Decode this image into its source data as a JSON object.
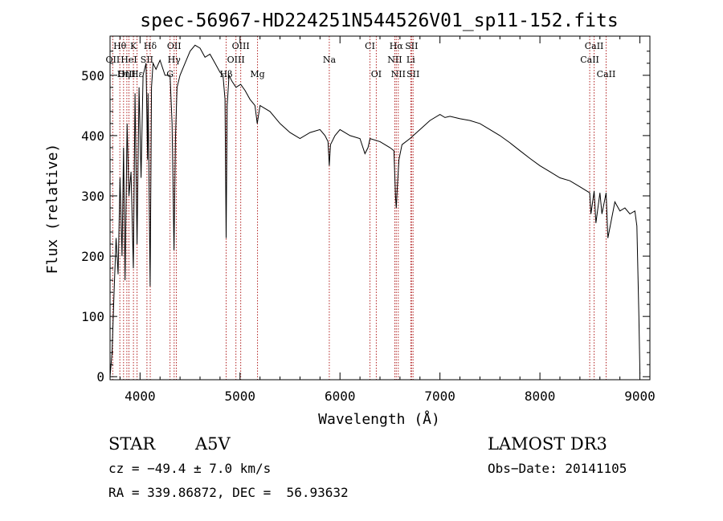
{
  "chart_data": {
    "type": "line",
    "title": "spec-56967-HD224251N544526V01_sp11-152.fits",
    "xlabel": "Wavelength (Å)",
    "ylabel": "Flux (relative)",
    "xlim": [
      3700,
      9100
    ],
    "ylim": [
      -5,
      565
    ],
    "x_ticks": [
      4000,
      5000,
      6000,
      7000,
      8000,
      9000
    ],
    "y_ticks": [
      0,
      100,
      200,
      300,
      400,
      500
    ],
    "grid": false,
    "series": [
      {
        "x": [
          3700,
          3720,
          3740,
          3760,
          3780,
          3800,
          3820,
          3835,
          3850,
          3870,
          3889,
          3910,
          3933,
          3950,
          3970,
          3990,
          4010,
          4030,
          4060,
          4075,
          4080,
          4101,
          4115,
          4130,
          4160,
          4200,
          4250,
          4300,
          4320,
          4340,
          4355,
          4370,
          4400,
          4450,
          4500,
          4550,
          4600,
          4650,
          4700,
          4750,
          4800,
          4830,
          4850,
          4861,
          4872,
          4890,
          4920,
          4960,
          5007,
          5050,
          5100,
          5150,
          5172,
          5200,
          5300,
          5400,
          5500,
          5600,
          5700,
          5800,
          5850,
          5880,
          5893,
          5905,
          5950,
          6000,
          6100,
          6200,
          6250,
          6280,
          6300,
          6400,
          6450,
          6500,
          6540,
          6555,
          6563,
          6572,
          6590,
          6620,
          6700,
          6800,
          6900,
          7000,
          7050,
          7100,
          7200,
          7300,
          7400,
          7500,
          7600,
          7700,
          7800,
          7900,
          8000,
          8100,
          8200,
          8300,
          8400,
          8498,
          8510,
          8542,
          8560,
          8600,
          8620,
          8662,
          8680,
          8750,
          8800,
          8850,
          8900,
          8950,
          8970,
          8990,
          9000
        ],
        "y": [
          0,
          40,
          140,
          230,
          170,
          330,
          200,
          380,
          160,
          420,
          300,
          340,
          180,
          470,
          220,
          480,
          330,
          500,
          520,
          360,
          470,
          150,
          480,
          520,
          510,
          525,
          500,
          500,
          420,
          210,
          400,
          480,
          500,
          520,
          540,
          550,
          545,
          530,
          535,
          520,
          505,
          500,
          460,
          230,
          450,
          500,
          490,
          480,
          485,
          475,
          460,
          450,
          420,
          450,
          440,
          420,
          405,
          395,
          405,
          410,
          400,
          390,
          350,
          385,
          400,
          410,
          400,
          395,
          370,
          380,
          395,
          390,
          385,
          380,
          375,
          300,
          280,
          310,
          360,
          385,
          395,
          410,
          425,
          435,
          430,
          432,
          428,
          425,
          420,
          410,
          400,
          388,
          375,
          362,
          350,
          340,
          330,
          325,
          315,
          305,
          270,
          308,
          255,
          305,
          270,
          305,
          230,
          290,
          275,
          280,
          270,
          275,
          250,
          100,
          5
        ]
      }
    ],
    "spectral_lines": [
      {
        "label": "Hθ",
        "x": 3798,
        "row": 1
      },
      {
        "label": "K",
        "x": 3934,
        "row": 1
      },
      {
        "label": "Hδ",
        "x": 4102,
        "row": 1
      },
      {
        "label": "OII",
        "x": 4341,
        "row": 1
      },
      {
        "label": "OIII",
        "x": 5007,
        "row": 1
      },
      {
        "label": "CI",
        "x": 6300,
        "row": 1
      },
      {
        "label": "Hα",
        "x": 6563,
        "row": 1
      },
      {
        "label": "SII",
        "x": 6716,
        "row": 1
      },
      {
        "label": "CaII",
        "x": 8542,
        "row": 1
      },
      {
        "label": "OII",
        "x": 3727,
        "row": 2
      },
      {
        "label": "HeI",
        "x": 3889,
        "row": 2
      },
      {
        "label": "SII",
        "x": 4069,
        "row": 2
      },
      {
        "label": "Hγ",
        "x": 4341,
        "row": 2
      },
      {
        "label": "OIII",
        "x": 4959,
        "row": 2
      },
      {
        "label": "Na",
        "x": 5893,
        "row": 2
      },
      {
        "label": "NII",
        "x": 6548,
        "row": 2
      },
      {
        "label": "Li",
        "x": 6708,
        "row": 2
      },
      {
        "label": "CaII",
        "x": 8498,
        "row": 2
      },
      {
        "label": "OIII",
        "x": 3868,
        "row": 3
      },
      {
        "label": "Hη",
        "x": 3835,
        "row": 3
      },
      {
        "label": "Hε",
        "x": 3970,
        "row": 3
      },
      {
        "label": "G",
        "x": 4300,
        "row": 3
      },
      {
        "label": "Hβ",
        "x": 4861,
        "row": 3
      },
      {
        "label": "Mg",
        "x": 5175,
        "row": 3
      },
      {
        "label": "OI",
        "x": 6363,
        "row": 3
      },
      {
        "label": "NII",
        "x": 6583,
        "row": 3
      },
      {
        "label": "SII",
        "x": 6731,
        "row": 3
      },
      {
        "label": "CaII",
        "x": 8662,
        "row": 3
      }
    ],
    "marker_lines": [
      3727,
      3798,
      3835,
      3868,
      3889,
      3934,
      3970,
      4069,
      4102,
      4300,
      4341,
      4363,
      4861,
      4959,
      5007,
      5175,
      5893,
      6300,
      6363,
      6548,
      6563,
      6583,
      6708,
      6716,
      6731,
      8498,
      8542,
      8662
    ],
    "line_color": "#000000",
    "marker_color": "#b22222"
  },
  "info": {
    "object_class": "STAR",
    "subclass": "A5V",
    "survey": "LAMOST DR3",
    "cz": "cz = −49.4 ± 7.0 km/s",
    "obs_date": "Obs−Date: 20141105",
    "coords": "RA = 339.86872, DEC =  56.93632"
  }
}
